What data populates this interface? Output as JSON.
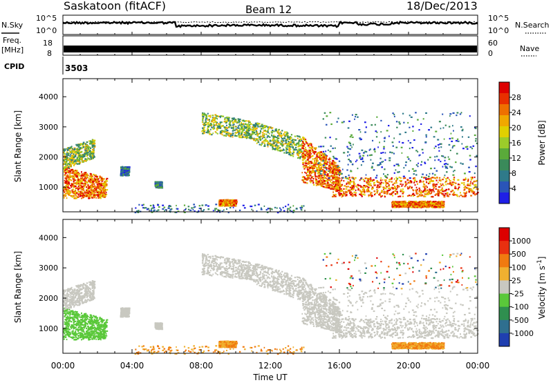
{
  "header": {
    "site": "Saskatoon (fitACF)",
    "beam": "Beam 12",
    "date": "18/Dec/2013"
  },
  "noise_panel": {
    "left_label": "N.Sky",
    "right_label": "N.Search",
    "left_ticks": [
      "10^5",
      "10^0"
    ],
    "right_ticks": [
      "10^5",
      "10^0"
    ]
  },
  "freq_panel": {
    "left_label_1": "Freq.",
    "left_label_2": "[MHz]",
    "left_ticks": [
      "18",
      "8"
    ],
    "right_label": "Nave",
    "right_ticks": [
      "60",
      "0"
    ]
  },
  "cpid_panel": {
    "label": "CPID",
    "value": "3503"
  },
  "x_axis": {
    "label": "Time UT",
    "ticks": [
      "00:00",
      "04:00",
      "08:00",
      "12:00",
      "16:00",
      "20:00",
      "00:00"
    ]
  },
  "y_axis": {
    "label": "Slant Range [km]",
    "ticks": [
      "4000",
      "3000",
      "2000",
      "1000"
    ]
  },
  "chart_data": [
    {
      "type": "heatmap",
      "title": "",
      "xlabel": "Time UT",
      "ylabel": "Slant Range [km]",
      "xlim": [
        0,
        24
      ],
      "ylim": [
        180,
        4600
      ],
      "x_ticks": [
        "00:00",
        "04:00",
        "08:00",
        "12:00",
        "16:00",
        "20:00",
        "00:00"
      ],
      "y_ticks": [
        1000,
        2000,
        3000,
        4000
      ],
      "colorbar": {
        "label": "Power [dB]",
        "ticks": [
          "28",
          "24",
          "20",
          "16",
          "12",
          "8",
          "4"
        ],
        "range": [
          0,
          30
        ],
        "colors": [
          "#1f1fe6",
          "#2a55b8",
          "#2f7a8a",
          "#3a8a5a",
          "#5aaa3a",
          "#9ccc2a",
          "#e0d000",
          "#f0a800",
          "#ee7000",
          "#e83000",
          "#dd0000"
        ]
      }
    },
    {
      "type": "heatmap",
      "title": "",
      "xlabel": "Time UT",
      "ylabel": "Slant Range [km]",
      "xlim": [
        0,
        24
      ],
      "ylim": [
        180,
        4600
      ],
      "x_ticks": [
        "00:00",
        "04:00",
        "08:00",
        "12:00",
        "16:00",
        "20:00",
        "00:00"
      ],
      "y_ticks": [
        1000,
        2000,
        3000,
        4000
      ],
      "colorbar": {
        "label": "Velocity [m s^-1]",
        "ticks": [
          "1000",
          "500",
          "100",
          "25",
          "-25",
          "-100",
          "-500",
          "-1000"
        ],
        "colors": [
          "#1f3fb0",
          "#2f6f8f",
          "#2f8f4f",
          "#5ac83a",
          "#c8c8c0",
          "#f0b030",
          "#f07a10",
          "#e83010",
          "#dd0000"
        ]
      }
    }
  ]
}
